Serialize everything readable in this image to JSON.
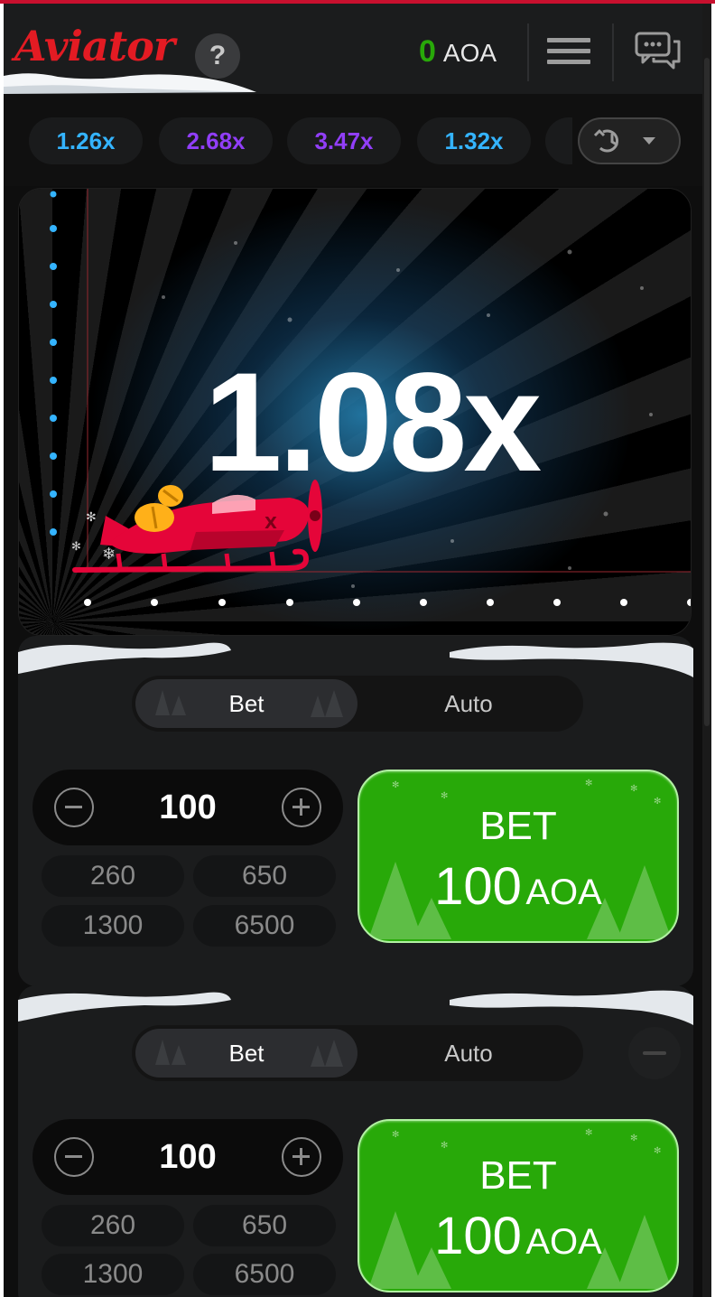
{
  "header": {
    "logo": "Aviator",
    "help_label": "?",
    "balance_value": "0",
    "balance_currency": "AOA"
  },
  "history": [
    {
      "label": "1.26x",
      "color": "#34b4ff"
    },
    {
      "label": "2.68x",
      "color": "#913ef8"
    },
    {
      "label": "3.47x",
      "color": "#913ef8"
    },
    {
      "label": "1.32x",
      "color": "#34b4ff"
    }
  ],
  "game": {
    "multiplier": "1.08x",
    "plane_color": "#e50539"
  },
  "panels": [
    {
      "tabs": [
        "Bet",
        "Auto"
      ],
      "stake": "100",
      "quick_amounts": [
        "260",
        "650",
        "1300",
        "6500"
      ],
      "bet_label": "BET",
      "bet_amount": "100",
      "bet_currency": "AOA"
    },
    {
      "tabs": [
        "Bet",
        "Auto"
      ],
      "stake": "100",
      "quick_amounts": [
        "260",
        "650",
        "1300",
        "6500"
      ],
      "bet_label": "BET",
      "bet_amount": "100",
      "bet_currency": "AOA"
    }
  ],
  "icons": {
    "help": "question-icon",
    "menu": "hamburger-icon",
    "chat": "chat-icon",
    "history": "history-icon",
    "dropdown": "caret-down-icon"
  }
}
